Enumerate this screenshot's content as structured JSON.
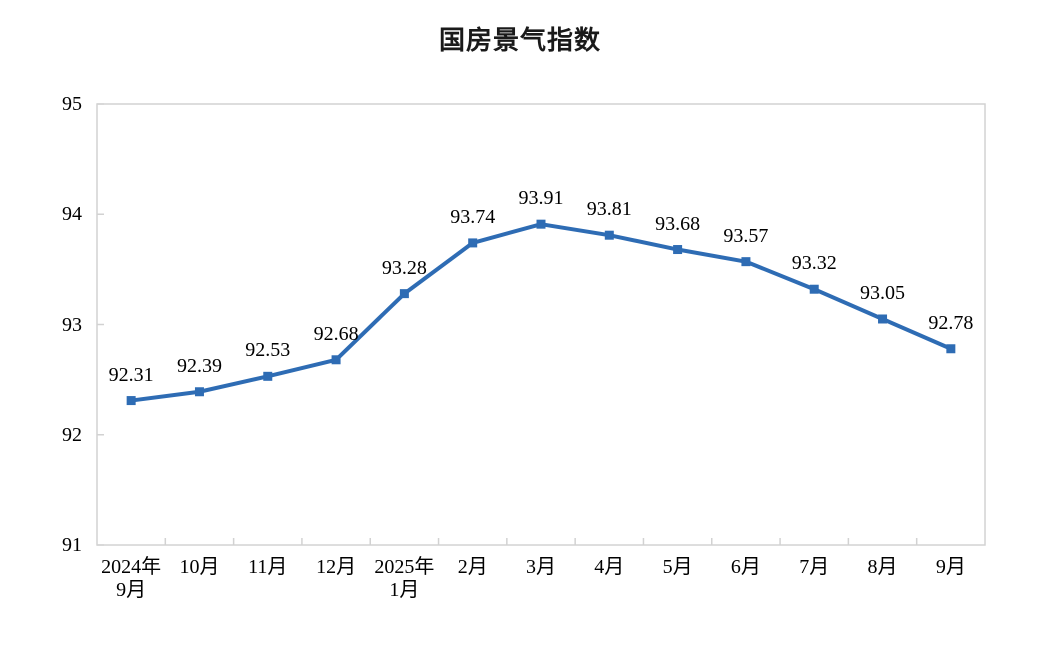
{
  "chart_data": {
    "type": "line",
    "title": "国房景气指数",
    "categories": [
      "2024年\n9月",
      "10月",
      "11月",
      "12月",
      "2025年\n1月",
      "2月",
      "3月",
      "4月",
      "5月",
      "6月",
      "7月",
      "8月",
      "9月"
    ],
    "values": [
      92.31,
      92.39,
      92.53,
      92.68,
      93.28,
      93.74,
      93.91,
      93.81,
      93.68,
      93.57,
      93.32,
      93.05,
      92.78
    ],
    "point_labels": [
      "92.31",
      "92.39",
      "92.53",
      "92.68",
      "93.28",
      "93.74",
      "93.91",
      "93.81",
      "93.68",
      "93.57",
      "93.32",
      "93.05",
      "92.78"
    ],
    "xlabel": "",
    "ylabel": "",
    "ylim": [
      91,
      95
    ],
    "yticks": [
      91,
      92,
      93,
      94,
      95
    ],
    "grid": false,
    "legend": "none",
    "marker": "square",
    "colors": {
      "line": "#2e6cb4",
      "marker": "#2e6cb4",
      "axis": "#d2d2d2",
      "text": "#000000",
      "background": "#ffffff"
    }
  }
}
